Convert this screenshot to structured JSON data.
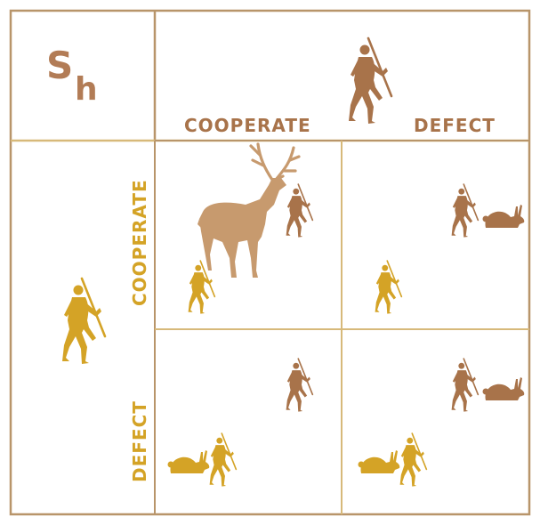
{
  "logo": {
    "text_s": "S",
    "text_h": "h"
  },
  "column_player": {
    "label_cooperate": "COOPERATE",
    "label_defect": "DEFECT"
  },
  "row_player": {
    "label_cooperate": "COOPERATE",
    "label_defect": "DEFECT"
  },
  "colors": {
    "border": "#b8956a",
    "grid": "#d7b97a",
    "brown_player": "#a8734a",
    "gold_player": "#d4a326",
    "deer": "#c79a6e",
    "logo": "#b27c56"
  },
  "icons": {
    "column_hunter": "hunter-with-spear-icon",
    "row_hunter": "hunter-with-spear-icon",
    "stag": "stag-icon",
    "hare": "hare-icon"
  }
}
